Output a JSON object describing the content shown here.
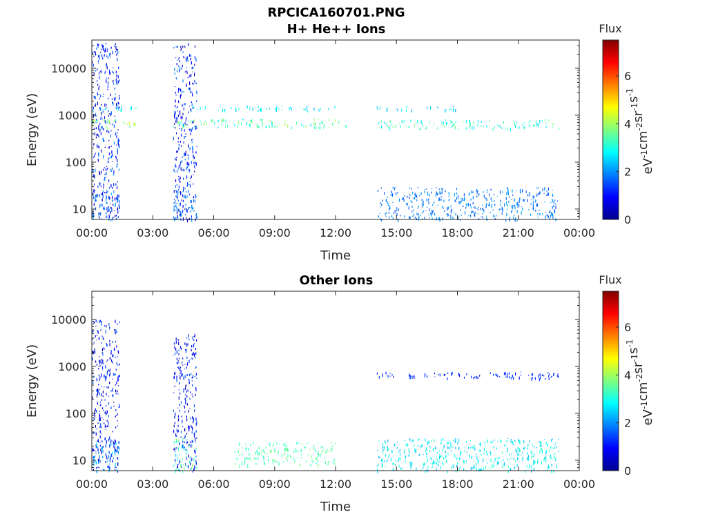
{
  "figure": {
    "title": "RPCICA160701.PNG"
  },
  "chart_data": [
    {
      "type": "heatmap",
      "title": "H+ He++ Ions",
      "xlabel": "Time",
      "ylabel": "Energy (eV)",
      "xlim": [
        "00:00",
        "24:00"
      ],
      "ylim": [
        6,
        40000
      ],
      "yscale": "log",
      "x_ticks": [
        "00:00",
        "03:00",
        "06:00",
        "09:00",
        "12:00",
        "15:00",
        "18:00",
        "21:00",
        "00:00"
      ],
      "y_ticks": [
        "10",
        "100",
        "1000",
        "10000"
      ],
      "colorbar": {
        "title": "Flux",
        "label": "eV-1cm-2sr-1s-1",
        "label_base": [
          "eV",
          "cm",
          "sr",
          "s"
        ],
        "label_exp": [
          "-1",
          "-2",
          "-1",
          "-1"
        ],
        "range": [
          0,
          7.5
        ],
        "ticks": [
          "0",
          "2",
          "4",
          "6"
        ],
        "colormap": "jet"
      },
      "regions": [
        {
          "t": [
            0.0,
            1.35
          ],
          "e": [
            6,
            35000
          ],
          "flux": [
            0.3,
            2.0
          ]
        },
        {
          "t": [
            0.0,
            1.35
          ],
          "e": [
            6,
            25
          ],
          "flux": [
            1.2,
            2.2
          ]
        },
        {
          "t": [
            0.0,
            2.2
          ],
          "e": [
            550,
            850
          ],
          "flux": [
            3.0,
            4.5
          ]
        },
        {
          "t": [
            0.0,
            2.2
          ],
          "e": [
            1300,
            1600
          ],
          "flux": [
            2.5,
            3.3
          ]
        },
        {
          "t": [
            4.0,
            5.15
          ],
          "e": [
            6,
            35000
          ],
          "flux": [
            0.3,
            2.0
          ]
        },
        {
          "t": [
            4.0,
            5.15
          ],
          "e": [
            6,
            25
          ],
          "flux": [
            1.3,
            2.3
          ]
        },
        {
          "t": [
            4.0,
            12.5
          ],
          "e": [
            550,
            850
          ],
          "flux": [
            2.5,
            4.2
          ]
        },
        {
          "t": [
            4.0,
            12.0
          ],
          "e": [
            1300,
            1600
          ],
          "flux": [
            2.3,
            3.0
          ]
        },
        {
          "t": [
            14.0,
            23.0
          ],
          "e": [
            520,
            820
          ],
          "flux": [
            2.5,
            3.8
          ]
        },
        {
          "t": [
            14.0,
            18.0
          ],
          "e": [
            1300,
            1600
          ],
          "flux": [
            2.2,
            2.8
          ]
        },
        {
          "t": [
            14.0,
            23.0
          ],
          "e": [
            6,
            30
          ],
          "flux": [
            1.5,
            2.2
          ]
        }
      ]
    },
    {
      "type": "heatmap",
      "title": "Other Ions",
      "xlabel": "Time",
      "ylabel": "Energy (eV)",
      "xlim": [
        "00:00",
        "24:00"
      ],
      "ylim": [
        6,
        40000
      ],
      "yscale": "log",
      "x_ticks": [
        "00:00",
        "03:00",
        "06:00",
        "09:00",
        "12:00",
        "15:00",
        "18:00",
        "21:00",
        "00:00"
      ],
      "y_ticks": [
        "10",
        "100",
        "1000",
        "10000"
      ],
      "colorbar": {
        "title": "Flux",
        "label": "eV-1cm-2sr-1s-1",
        "label_base": [
          "eV",
          "cm",
          "sr",
          "s"
        ],
        "label_exp": [
          "-1",
          "-2",
          "-1",
          "-1"
        ],
        "range": [
          0,
          7.5
        ],
        "ticks": [
          "0",
          "2",
          "4",
          "6"
        ],
        "colormap": "jet"
      },
      "regions": [
        {
          "t": [
            0.0,
            1.35
          ],
          "e": [
            6,
            10000
          ],
          "flux": [
            0.3,
            1.7
          ]
        },
        {
          "t": [
            0.0,
            1.35
          ],
          "e": [
            6,
            25
          ],
          "flux": [
            1.5,
            2.8
          ]
        },
        {
          "t": [
            0.0,
            1.35
          ],
          "e": [
            600,
            800
          ],
          "flux": [
            1.0,
            1.8
          ]
        },
        {
          "t": [
            4.0,
            5.15
          ],
          "e": [
            6,
            5000
          ],
          "flux": [
            0.4,
            1.7
          ]
        },
        {
          "t": [
            4.0,
            5.15
          ],
          "e": [
            6,
            30
          ],
          "flux": [
            2.5,
            4.0
          ]
        },
        {
          "t": [
            4.0,
            5.15
          ],
          "e": [
            600,
            800
          ],
          "flux": [
            1.0,
            1.7
          ]
        },
        {
          "t": [
            14.0,
            23.0
          ],
          "e": [
            560,
            780
          ],
          "flux": [
            1.0,
            1.6
          ]
        },
        {
          "t": [
            14.0,
            23.0
          ],
          "e": [
            6,
            30
          ],
          "flux": [
            2.2,
            3.3
          ]
        },
        {
          "t": [
            7.0,
            12.0
          ],
          "e": [
            8,
            25
          ],
          "flux": [
            3.0,
            3.8
          ]
        }
      ]
    }
  ]
}
